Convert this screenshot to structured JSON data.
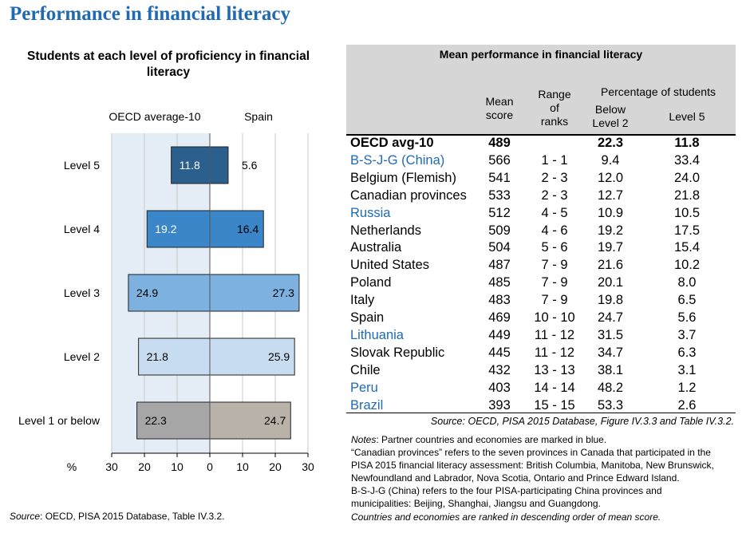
{
  "page_title": "Performance in financial literacy",
  "chart_data": {
    "type": "bar",
    "orientation": "horizontal",
    "title": "Students at each level of proficiency in financial literacy",
    "categories": [
      "Level 5",
      "Level 4",
      "Level 3",
      "Level 2",
      "Level 1 or below"
    ],
    "series": [
      {
        "name": "OECD average-10",
        "values": [
          11.8,
          19.2,
          24.9,
          21.8,
          22.3
        ],
        "side": "left"
      },
      {
        "name": "Spain",
        "values": [
          5.6,
          16.4,
          27.3,
          25.9,
          24.7
        ],
        "side": "right"
      }
    ],
    "colors": [
      "#2b5f8e",
      "#3a86c8",
      "#7db2e0",
      "#c7dcf0",
      "#b8b2a8"
    ],
    "left_colors": [
      "#2b5f8e",
      "#3a86c8",
      "#7db2e0",
      "#c7dcf0",
      "#a6a6a6"
    ],
    "xlabel": "%",
    "x_ticks": [
      30,
      20,
      10,
      0,
      10,
      20,
      30
    ],
    "xlim": [
      -30,
      30
    ],
    "source": "OECD, PISA 2015 Database, Table IV.3.2.",
    "source_label": "Source"
  },
  "table": {
    "title": "Mean performance in financial literacy",
    "headers": {
      "mean_score": [
        "Mean",
        "score"
      ],
      "range_of_ranks": [
        "Range",
        "of",
        "ranks"
      ],
      "percentage_group": "Percentage of students",
      "below_level2": [
        "Below",
        "Level 2"
      ],
      "level5": "Level 5"
    },
    "rows": [
      {
        "name": "OECD avg-10",
        "score": "489",
        "ranks": "",
        "below2": "22.3",
        "level5": "11.8",
        "avg": true
      },
      {
        "name": "B-S-J-G (China)",
        "score": "566",
        "ranks": "1 - 1",
        "below2": "9.4",
        "level5": "33.4",
        "partner": true
      },
      {
        "name": "Belgium (Flemish)",
        "score": "541",
        "ranks": "2 - 3",
        "below2": "12.0",
        "level5": "24.0"
      },
      {
        "name": "Canadian provinces",
        "score": "533",
        "ranks": "2 - 3",
        "below2": "12.7",
        "level5": "21.8"
      },
      {
        "name": "Russia",
        "score": "512",
        "ranks": "4 - 5",
        "below2": "10.9",
        "level5": "10.5",
        "partner": true
      },
      {
        "name": "Netherlands",
        "score": "509",
        "ranks": "4 - 6",
        "below2": "19.2",
        "level5": "17.5"
      },
      {
        "name": "Australia",
        "score": "504",
        "ranks": "5 - 6",
        "below2": "19.7",
        "level5": "15.4"
      },
      {
        "name": "United States",
        "score": "487",
        "ranks": "7 - 9",
        "below2": "21.6",
        "level5": "10.2"
      },
      {
        "name": "Poland",
        "score": "485",
        "ranks": "7 - 9",
        "below2": "20.1",
        "level5": "8.0"
      },
      {
        "name": "Italy",
        "score": "483",
        "ranks": "7 - 9",
        "below2": "19.8",
        "level5": "6.5"
      },
      {
        "name": "Spain",
        "score": "469",
        "ranks": "10 - 10",
        "below2": "24.7",
        "level5": "5.6"
      },
      {
        "name": "Lithuania",
        "score": "449",
        "ranks": "11 - 12",
        "below2": "31.5",
        "level5": "3.7",
        "partner": true
      },
      {
        "name": "Slovak Republic",
        "score": "445",
        "ranks": "11 - 12",
        "below2": "34.7",
        "level5": "6.3"
      },
      {
        "name": "Chile",
        "score": "432",
        "ranks": "13 - 13",
        "below2": "38.1",
        "level5": "3.1"
      },
      {
        "name": "Peru",
        "score": "403",
        "ranks": "14 - 14",
        "below2": "48.2",
        "level5": "1.2",
        "partner": true
      },
      {
        "name": "Brazil",
        "score": "393",
        "ranks": "15 - 15",
        "below2": "53.3",
        "level5": "2.6",
        "partner": true
      }
    ],
    "source_label": "Source",
    "source": "OECD, PISA 2015 Database, Figure IV.3.3 and Table IV.3.2."
  },
  "notes": {
    "label": "Notes",
    "line1": "Partner countries and economies are marked in blue.",
    "lines": [
      "“Canadian provinces” refers to the seven provinces in Canada that participated in the",
      "PISA 2015 financial literacy assessment: British Columbia, Manitoba, New Brunswick,",
      "Newfoundland and Labrador, Nova Scotia, Ontario and Prince Edward Island.",
      "B-S-J-G (China) refers to the four PISA-participating China provinces and",
      "municipalities: Beijing, Shanghai, Jiangsu and Guangdong."
    ],
    "ranking": "Countries and economies are ranked in descending order of mean score."
  },
  "colors": {
    "title_blue": "#1f6ab1",
    "partner_blue": "#1f6ab1",
    "oecd_band": "#e4edf6"
  }
}
